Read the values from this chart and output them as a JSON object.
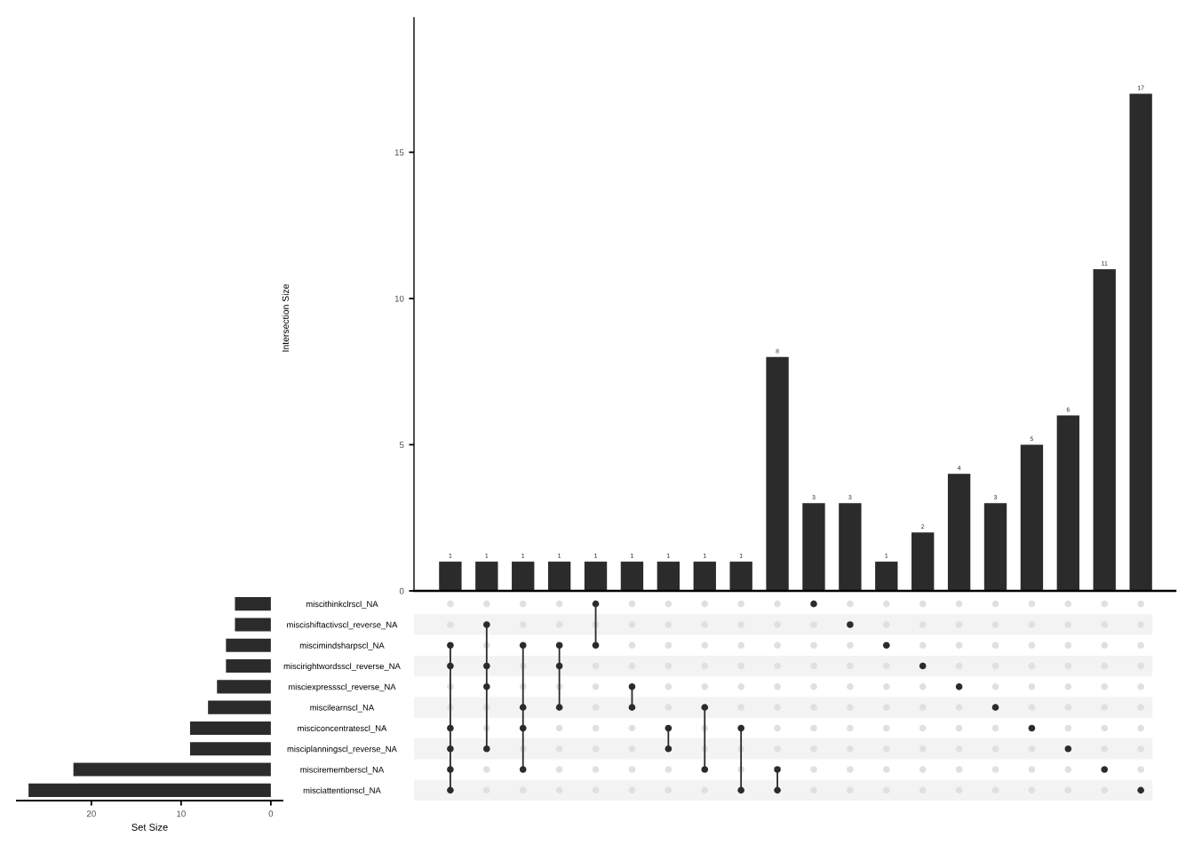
{
  "chart_data": [
    {
      "type": "bar",
      "ylabel": "Intersection Size",
      "categories": [
        null,
        null,
        null,
        null,
        null,
        null,
        null,
        null,
        null,
        null,
        null,
        null,
        null,
        null,
        null,
        null,
        null,
        null,
        null,
        null
      ],
      "values": [
        1,
        1,
        1,
        1,
        1,
        1,
        1,
        1,
        1,
        8,
        3,
        3,
        1,
        2,
        4,
        3,
        5,
        6,
        11,
        17
      ],
      "color": "#2b2b2b",
      "data_labels": true,
      "ylim": [
        0,
        19.6
      ],
      "yticks": [
        0,
        5,
        10,
        15
      ]
    },
    {
      "type": "bar",
      "orientation": "horizontal",
      "xlabel": "Set Size",
      "categories": [
        "miscithinkclrscl_NA",
        "miscishiftactivscl_reverse_NA",
        "miscimindsharpscl_NA",
        "miscirightwordsscl_reverse_NA",
        "misciexpressscl_reverse_NA",
        "miscilearnscl_NA",
        "misciconcentratescl_NA",
        "misciplanningscl_reverse_NA",
        "miscirememberscl_NA",
        "misciattentionscl_NA"
      ],
      "values": [
        4,
        4,
        5,
        5,
        6,
        7,
        9,
        9,
        22,
        27
      ],
      "color": "#2b2b2b",
      "xlim": [
        28.3,
        -1.3
      ],
      "xticks": [
        20,
        10,
        0
      ]
    },
    {
      "type": "other",
      "cells": [
        [
          false,
          false,
          false,
          false,
          true,
          false,
          false,
          false,
          false,
          false,
          true,
          false,
          false,
          false,
          false,
          false,
          false,
          false,
          false,
          false
        ],
        [
          false,
          true,
          false,
          false,
          false,
          false,
          false,
          false,
          false,
          false,
          false,
          true,
          false,
          false,
          false,
          false,
          false,
          false,
          false,
          false
        ],
        [
          true,
          false,
          true,
          true,
          true,
          false,
          false,
          false,
          false,
          false,
          false,
          false,
          true,
          false,
          false,
          false,
          false,
          false,
          false,
          false
        ],
        [
          true,
          true,
          false,
          true,
          false,
          false,
          false,
          false,
          false,
          false,
          false,
          false,
          false,
          true,
          false,
          false,
          false,
          false,
          false,
          false
        ],
        [
          false,
          true,
          false,
          false,
          false,
          true,
          false,
          false,
          false,
          false,
          false,
          false,
          false,
          false,
          true,
          false,
          false,
          false,
          false,
          false
        ],
        [
          false,
          false,
          true,
          true,
          false,
          true,
          false,
          true,
          false,
          false,
          false,
          false,
          false,
          false,
          false,
          true,
          false,
          false,
          false,
          false
        ],
        [
          true,
          false,
          true,
          false,
          false,
          false,
          true,
          false,
          true,
          false,
          false,
          false,
          false,
          false,
          false,
          false,
          true,
          false,
          false,
          false
        ],
        [
          true,
          true,
          false,
          false,
          false,
          false,
          true,
          false,
          false,
          false,
          false,
          false,
          false,
          false,
          false,
          false,
          false,
          true,
          false,
          false
        ],
        [
          true,
          false,
          true,
          false,
          false,
          false,
          false,
          true,
          false,
          true,
          false,
          false,
          false,
          false,
          false,
          false,
          false,
          false,
          true,
          false
        ],
        [
          true,
          false,
          false,
          false,
          false,
          false,
          false,
          false,
          true,
          true,
          false,
          false,
          false,
          false,
          false,
          false,
          false,
          false,
          false,
          true
        ]
      ]
    }
  ]
}
